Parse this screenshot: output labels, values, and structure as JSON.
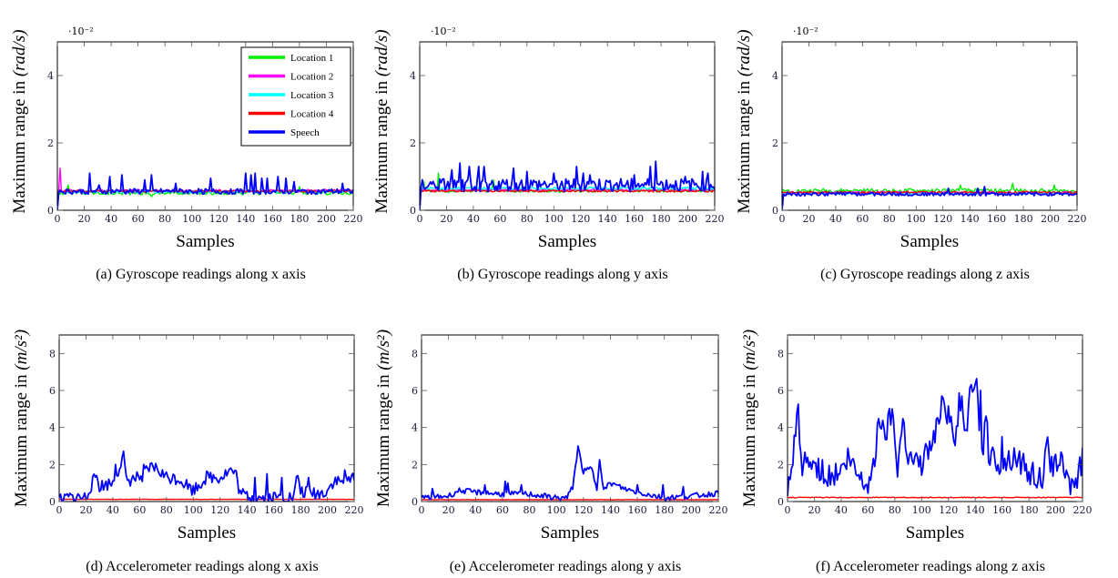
{
  "chart_data": [
    {
      "id": "a",
      "type": "line",
      "caption": "(a) Gyroscope readings along x axis",
      "xlabel": "Samples",
      "ylabel_prefix": "Maximum range in ",
      "ylabel_unit": "(rad/s)",
      "y_scale_note": "·10⁻²",
      "xlim": [
        0,
        220
      ],
      "ylim": [
        0,
        5
      ],
      "xticks": [
        0,
        20,
        40,
        60,
        80,
        100,
        120,
        140,
        160,
        180,
        200,
        220
      ],
      "yticks": [
        0,
        2,
        4
      ],
      "legend": "top-right",
      "series": [
        {
          "name": "Location 1",
          "color": "#00ee00",
          "base": 0.52,
          "noise": 0.06,
          "spikes": [
            [
              8,
              0.75
            ],
            [
              70,
              0.4
            ],
            [
              180,
              0.7
            ]
          ]
        },
        {
          "name": "Location 2",
          "color": "#ff00ff",
          "base": 0.58,
          "noise": 0.04,
          "spikes": [
            [
              2,
              1.25
            ]
          ]
        },
        {
          "name": "Location 3",
          "color": "#00ffff",
          "base": 0.55,
          "noise": 0.04,
          "spikes": []
        },
        {
          "name": "Location 4",
          "color": "#ff0000",
          "base": 0.57,
          "noise": 0.03,
          "spikes": []
        },
        {
          "name": "Speech",
          "color": "#0000ff",
          "base": 0.56,
          "noise": 0.08,
          "spikes": [
            [
              24,
              1.1
            ],
            [
              31,
              0.75
            ],
            [
              39,
              1.0
            ],
            [
              48,
              1.05
            ],
            [
              65,
              0.9
            ],
            [
              70,
              1.05
            ],
            [
              88,
              0.8
            ],
            [
              114,
              0.95
            ],
            [
              140,
              1.1
            ],
            [
              144,
              1.05
            ],
            [
              147,
              1.1
            ],
            [
              152,
              0.95
            ],
            [
              156,
              0.95
            ],
            [
              164,
              1.0
            ],
            [
              170,
              0.95
            ],
            [
              176,
              0.85
            ],
            [
              212,
              0.8
            ]
          ]
        }
      ]
    },
    {
      "id": "b",
      "type": "line",
      "caption": "(b) Gyroscope readings along y axis",
      "xlabel": "Samples",
      "ylabel_prefix": "Maximum range in ",
      "ylabel_unit": "(rad/s)",
      "y_scale_note": "·10⁻²",
      "xlim": [
        0,
        220
      ],
      "ylim": [
        0,
        5
      ],
      "xticks": [
        0,
        20,
        40,
        60,
        80,
        100,
        120,
        140,
        160,
        180,
        200,
        220
      ],
      "yticks": [
        0,
        2,
        4
      ],
      "series": [
        {
          "name": "Location 1",
          "color": "#00ee00",
          "base": 0.58,
          "noise": 0.05,
          "spikes": [
            [
              3,
              0.85
            ],
            [
              14,
              1.1
            ],
            [
              55,
              0.9
            ]
          ]
        },
        {
          "name": "Location 2",
          "color": "#ff00ff",
          "base": 0.6,
          "noise": 0.03,
          "spikes": []
        },
        {
          "name": "Location 3",
          "color": "#00ffff",
          "base": 0.65,
          "noise": 0.04,
          "spikes": []
        },
        {
          "name": "Location 4",
          "color": "#ff0000",
          "base": 0.57,
          "noise": 0.03,
          "spikes": []
        },
        {
          "name": "Speech",
          "color": "#0000ff",
          "base": 0.75,
          "noise": 0.2,
          "spikes": [
            [
              24,
              1.2
            ],
            [
              30,
              1.4
            ],
            [
              37,
              1.3
            ],
            [
              44,
              1.3
            ],
            [
              48,
              1.3
            ],
            [
              70,
              1.25
            ],
            [
              80,
              1.15
            ],
            [
              100,
              1.1
            ],
            [
              117,
              1.3
            ],
            [
              122,
              1.1
            ],
            [
              127,
              1.05
            ],
            [
              160,
              1.05
            ],
            [
              172,
              1.3
            ],
            [
              176,
              1.45
            ],
            [
              198,
              1.0
            ],
            [
              211,
              1.15
            ],
            [
              215,
              1.1
            ]
          ]
        }
      ]
    },
    {
      "id": "c",
      "type": "line",
      "caption": "(c) Gyroscope readings along z axis",
      "xlabel": "Samples",
      "ylabel_prefix": "Maximum range in ",
      "ylabel_unit": "(rad/s)",
      "y_scale_note": "·10⁻²",
      "xlim": [
        0,
        220
      ],
      "ylim": [
        0,
        5
      ],
      "xticks": [
        0,
        20,
        40,
        60,
        80,
        100,
        120,
        140,
        160,
        180,
        200,
        220
      ],
      "yticks": [
        0,
        2,
        4
      ],
      "series": [
        {
          "name": "Location 1",
          "color": "#00ee00",
          "base": 0.58,
          "noise": 0.06,
          "spikes": [
            [
              133,
              0.75
            ],
            [
              172,
              0.8
            ],
            [
              203,
              0.75
            ]
          ]
        },
        {
          "name": "Location 2",
          "color": "#ff00ff",
          "base": 0.52,
          "noise": 0.04,
          "spikes": []
        },
        {
          "name": "Location 3",
          "color": "#00ffff",
          "base": 0.5,
          "noise": 0.03,
          "spikes": []
        },
        {
          "name": "Location 4",
          "color": "#ff0000",
          "base": 0.53,
          "noise": 0.03,
          "spikes": []
        },
        {
          "name": "Speech",
          "color": "#0000ff",
          "base": 0.48,
          "noise": 0.05,
          "spikes": [
            [
              124,
              0.65
            ],
            [
              146,
              0.65
            ],
            [
              151,
              0.7
            ]
          ]
        }
      ]
    },
    {
      "id": "d",
      "type": "line",
      "caption": "(d) Accelerometer readings along x axis",
      "xlabel": "Samples",
      "ylabel_prefix": "Maximum range in ",
      "ylabel_unit": "(m/s²)",
      "xlim": [
        0,
        220
      ],
      "ylim": [
        0,
        9
      ],
      "xticks": [
        0,
        20,
        40,
        60,
        80,
        100,
        120,
        140,
        160,
        180,
        200,
        220
      ],
      "yticks": [
        0,
        2,
        4,
        6,
        8
      ],
      "series": [
        {
          "name": "Location 4",
          "color": "#ff0000",
          "base": 0.12,
          "noise": 0.01,
          "spikes": []
        },
        {
          "name": "Speech",
          "color": "#0000ff",
          "segments": [
            [
              0,
              0.2
            ],
            [
              20,
              0.2
            ],
            [
              22,
              0.6
            ],
            [
              28,
              1.4
            ],
            [
              30,
              0.8
            ],
            [
              40,
              1.0
            ],
            [
              48,
              2.4
            ],
            [
              50,
              1.1
            ],
            [
              60,
              1.3
            ],
            [
              70,
              1.9
            ],
            [
              80,
              1.3
            ],
            [
              90,
              1.2
            ],
            [
              100,
              0.6
            ],
            [
              110,
              1.3
            ],
            [
              120,
              1.3
            ],
            [
              128,
              1.7
            ],
            [
              132,
              1.4
            ],
            [
              135,
              0.4
            ],
            [
              140,
              0.3
            ],
            [
              150,
              0.2
            ],
            [
              160,
              0.2
            ],
            [
              175,
              0.2
            ],
            [
              178,
              1.5
            ],
            [
              180,
              0.5
            ],
            [
              195,
              0.4
            ],
            [
              200,
              0.6
            ],
            [
              205,
              1.1
            ],
            [
              215,
              1.0
            ],
            [
              220,
              1.4
            ]
          ],
          "noise": 0.35,
          "spikes": [
            [
              42,
              2.0
            ],
            [
              63,
              2.0
            ],
            [
              146,
              1.3
            ],
            [
              155,
              1.5
            ],
            [
              166,
              1.3
            ],
            [
              186,
              1.3
            ],
            [
              213,
              1.7
            ]
          ]
        }
      ]
    },
    {
      "id": "e",
      "type": "line",
      "caption": "(e) Accelerometer readings along y axis",
      "xlabel": "Samples",
      "ylabel_prefix": "Maximum range in ",
      "ylabel_unit": "(m/s²)",
      "xlim": [
        0,
        220
      ],
      "ylim": [
        0,
        9
      ],
      "xticks": [
        0,
        20,
        40,
        60,
        80,
        100,
        120,
        140,
        160,
        180,
        200,
        220
      ],
      "yticks": [
        0,
        2,
        4,
        6,
        8
      ],
      "series": [
        {
          "name": "Location 4",
          "color": "#ff0000",
          "base": 0.1,
          "noise": 0.01,
          "spikes": []
        },
        {
          "name": "Speech",
          "color": "#0000ff",
          "segments": [
            [
              0,
              0.2
            ],
            [
              20,
              0.3
            ],
            [
              28,
              0.6
            ],
            [
              40,
              0.5
            ],
            [
              60,
              0.4
            ],
            [
              80,
              0.4
            ],
            [
              100,
              0.2
            ],
            [
              108,
              0.2
            ],
            [
              112,
              0.8
            ],
            [
              116,
              2.9
            ],
            [
              120,
              1.6
            ],
            [
              126,
              1.8
            ],
            [
              130,
              0.7
            ],
            [
              132,
              2.4
            ],
            [
              135,
              0.6
            ],
            [
              140,
              1.0
            ],
            [
              150,
              0.7
            ],
            [
              160,
              0.5
            ],
            [
              180,
              0.2
            ],
            [
              200,
              0.3
            ],
            [
              220,
              0.45
            ]
          ],
          "noise": 0.15,
          "spikes": [
            [
              8,
              0.7
            ],
            [
              47,
              0.9
            ],
            [
              62,
              1.1
            ],
            [
              64,
              1.0
            ],
            [
              74,
              0.9
            ],
            [
              160,
              0.9
            ],
            [
              179,
              0.9
            ],
            [
              194,
              0.8
            ]
          ]
        }
      ]
    },
    {
      "id": "f",
      "type": "line",
      "caption": "(f) Accelerometer readings along z axis",
      "xlabel": "Samples",
      "ylabel_prefix": "Maximum range in ",
      "ylabel_unit": "(m/s²)",
      "xlim": [
        0,
        220
      ],
      "ylim": [
        0,
        9
      ],
      "xticks": [
        0,
        20,
        40,
        60,
        80,
        100,
        120,
        140,
        160,
        180,
        200,
        220
      ],
      "yticks": [
        0,
        2,
        4,
        6,
        8
      ],
      "series": [
        {
          "name": "Location 4",
          "color": "#ff0000",
          "base": 0.22,
          "noise": 0.02,
          "spikes": []
        },
        {
          "name": "Speech",
          "color": "#0000ff",
          "segments": [
            [
              0,
              0.3
            ],
            [
              3,
              1.5
            ],
            [
              8,
              5.0
            ],
            [
              10,
              2.0
            ],
            [
              20,
              2.0
            ],
            [
              30,
              1.3
            ],
            [
              40,
              1.6
            ],
            [
              45,
              2.3
            ],
            [
              55,
              1.2
            ],
            [
              60,
              1.0
            ],
            [
              65,
              2.0
            ],
            [
              68,
              5.0
            ],
            [
              72,
              3.5
            ],
            [
              78,
              5.0
            ],
            [
              82,
              2.0
            ],
            [
              86,
              4.5
            ],
            [
              90,
              2.5
            ],
            [
              100,
              2.0
            ],
            [
              110,
              3.5
            ],
            [
              116,
              6.0
            ],
            [
              120,
              4.5
            ],
            [
              125,
              3.2
            ],
            [
              128,
              5.5
            ],
            [
              133,
              4.0
            ],
            [
              138,
              6.5
            ],
            [
              140,
              7.0
            ],
            [
              143,
              4.0
            ],
            [
              146,
              3.0
            ],
            [
              148,
              5.2
            ],
            [
              150,
              2.5
            ],
            [
              160,
              2.0
            ],
            [
              170,
              2.5
            ],
            [
              180,
              1.5
            ],
            [
              190,
              1.2
            ],
            [
              194,
              3.0
            ],
            [
              198,
              1.5
            ],
            [
              202,
              2.5
            ],
            [
              210,
              1.0
            ],
            [
              216,
              1.2
            ],
            [
              220,
              2.3
            ]
          ],
          "noise": 0.7,
          "spikes": [
            [
              144,
              6.0
            ],
            [
              130,
              5.7
            ],
            [
              160,
              3.5
            ]
          ]
        }
      ]
    }
  ],
  "legend": {
    "items": [
      {
        "name": "Location 1",
        "color": "#00ee00"
      },
      {
        "name": "Location 2",
        "color": "#ff00ff"
      },
      {
        "name": "Location 3",
        "color": "#00ffff"
      },
      {
        "name": "Location 4",
        "color": "#ff0000"
      },
      {
        "name": "Speech",
        "color": "#0000ff"
      }
    ]
  }
}
